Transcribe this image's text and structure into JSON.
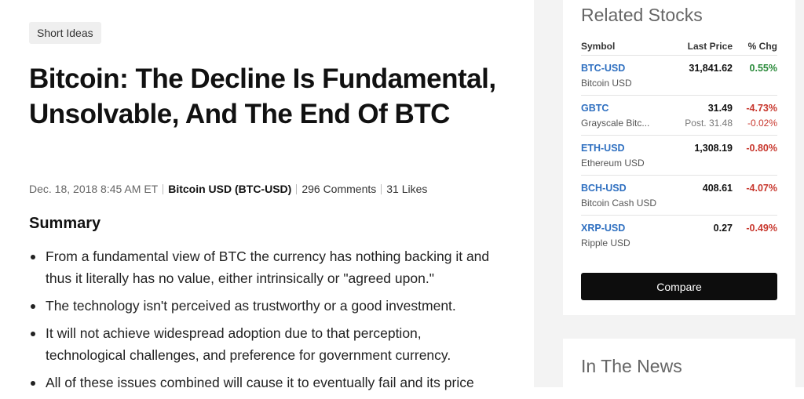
{
  "article": {
    "tag": "Short Ideas",
    "title": "Bitcoin: The Decline Is Fundamental, Unsolvable, And The End Of BTC",
    "date": "Dec. 18, 2018 8:45 AM ET",
    "symbol_link": "Bitcoin USD (BTC-USD)",
    "comments": "296 Comments",
    "likes": "31 Likes",
    "summary_heading": "Summary",
    "bullets": [
      "From a fundamental view of BTC the currency has nothing backing it and thus it literally has no value, either intrinsically or \"agreed upon.\"",
      "The technology isn't perceived as trustworthy or a good investment.",
      "It will not achieve widespread adoption due to that perception, technological challenges, and preference for government currency.",
      "All of these issues combined will cause it to eventually fail and its price"
    ]
  },
  "related": {
    "title": "Related Stocks",
    "headers": {
      "symbol": "Symbol",
      "price": "Last Price",
      "change": "% Chg"
    },
    "rows": [
      {
        "symbol": "BTC-USD",
        "name": "Bitcoin USD",
        "price": "31,841.62",
        "change": "0.55%",
        "direction": "up"
      },
      {
        "symbol": "GBTC",
        "name": "Grayscale Bitc...",
        "price": "31.49",
        "change": "-4.73%",
        "direction": "down",
        "post_price": "Post. 31.48",
        "post_change": "-0.02%"
      },
      {
        "symbol": "ETH-USD",
        "name": "Ethereum USD",
        "price": "1,308.19",
        "change": "-0.80%",
        "direction": "down"
      },
      {
        "symbol": "BCH-USD",
        "name": "Bitcoin Cash USD",
        "price": "408.61",
        "change": "-4.07%",
        "direction": "down"
      },
      {
        "symbol": "XRP-USD",
        "name": "Ripple USD",
        "price": "0.27",
        "change": "-0.49%",
        "direction": "down"
      }
    ],
    "compare_label": "Compare"
  },
  "news": {
    "title": "In The News"
  },
  "colors": {
    "link": "#2e6fc0",
    "up": "#2a8a3a",
    "down": "#c8372d",
    "button": "#0d0d0d"
  }
}
